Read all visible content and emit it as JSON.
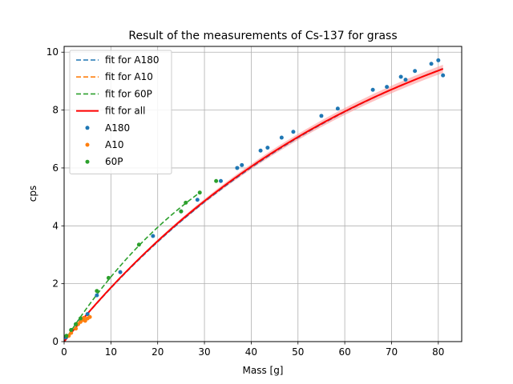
{
  "chart_data": {
    "type": "scatter",
    "title": "Result of the measurements of Cs-137 for grass",
    "xlabel": "Mass [g]",
    "ylabel": "cps",
    "xlim": [
      0,
      85
    ],
    "ylim": [
      0,
      10.2
    ],
    "xticks": [
      0,
      10,
      20,
      30,
      40,
      50,
      60,
      70,
      80
    ],
    "yticks": [
      0,
      2,
      4,
      6,
      8,
      10
    ],
    "grid": true,
    "legend_position": "top-left",
    "fits": [
      {
        "name": "fit for A180",
        "color": "#1f77b4",
        "dash": true,
        "x_max": 81,
        "a": 13.6,
        "b": 0.0146
      },
      {
        "name": "fit for A10",
        "color": "#ff7f0e",
        "dash": true,
        "x_max": 5,
        "a": 13.4,
        "b": 0.015
      },
      {
        "name": "fit for 60P",
        "color": "#2ca02c",
        "dash": true,
        "x_max": 29,
        "a": 9.6,
        "b": 0.0265
      },
      {
        "name": "fit for all",
        "color": "#ff0000",
        "dash": false,
        "x_max": 81,
        "a": 13.4,
        "b": 0.015
      }
    ],
    "series": [
      {
        "name": "A180",
        "color": "#1f77b4",
        "points": [
          [
            0.4,
            0.15
          ],
          [
            1.5,
            0.4
          ],
          [
            2.5,
            0.6
          ],
          [
            3.5,
            0.75
          ],
          [
            5,
            0.95
          ],
          [
            7,
            1.6
          ],
          [
            12,
            2.4
          ],
          [
            19,
            3.65
          ],
          [
            25,
            4.5
          ],
          [
            28.5,
            4.9
          ],
          [
            33.5,
            5.55
          ],
          [
            37,
            6.0
          ],
          [
            38,
            6.1
          ],
          [
            42,
            6.6
          ],
          [
            43.5,
            6.7
          ],
          [
            46.5,
            7.05
          ],
          [
            49,
            7.25
          ],
          [
            55,
            7.8
          ],
          [
            58.5,
            8.05
          ],
          [
            66,
            8.7
          ],
          [
            69,
            8.8
          ],
          [
            72,
            9.15
          ],
          [
            73,
            9.05
          ],
          [
            75,
            9.35
          ],
          [
            78.5,
            9.6
          ],
          [
            80,
            9.72
          ],
          [
            81,
            9.2
          ]
        ]
      },
      {
        "name": "A10",
        "color": "#ff7f0e",
        "points": [
          [
            1,
            0.2
          ],
          [
            1.5,
            0.3
          ],
          [
            2.5,
            0.45
          ],
          [
            3,
            0.6
          ],
          [
            3.5,
            0.68
          ],
          [
            4,
            0.75
          ],
          [
            4.5,
            0.72
          ],
          [
            5,
            0.8
          ],
          [
            5.5,
            0.85
          ],
          [
            4.2,
            0.82
          ]
        ]
      },
      {
        "name": "60P",
        "color": "#2ca02c",
        "points": [
          [
            0.5,
            0.2
          ],
          [
            1.5,
            0.4
          ],
          [
            2.5,
            0.6
          ],
          [
            3.5,
            0.8
          ],
          [
            7,
            1.75
          ],
          [
            9.5,
            2.2
          ],
          [
            16,
            3.35
          ],
          [
            25,
            4.5
          ],
          [
            26,
            4.8
          ],
          [
            29,
            5.15
          ],
          [
            32.5,
            5.55
          ]
        ]
      }
    ]
  }
}
